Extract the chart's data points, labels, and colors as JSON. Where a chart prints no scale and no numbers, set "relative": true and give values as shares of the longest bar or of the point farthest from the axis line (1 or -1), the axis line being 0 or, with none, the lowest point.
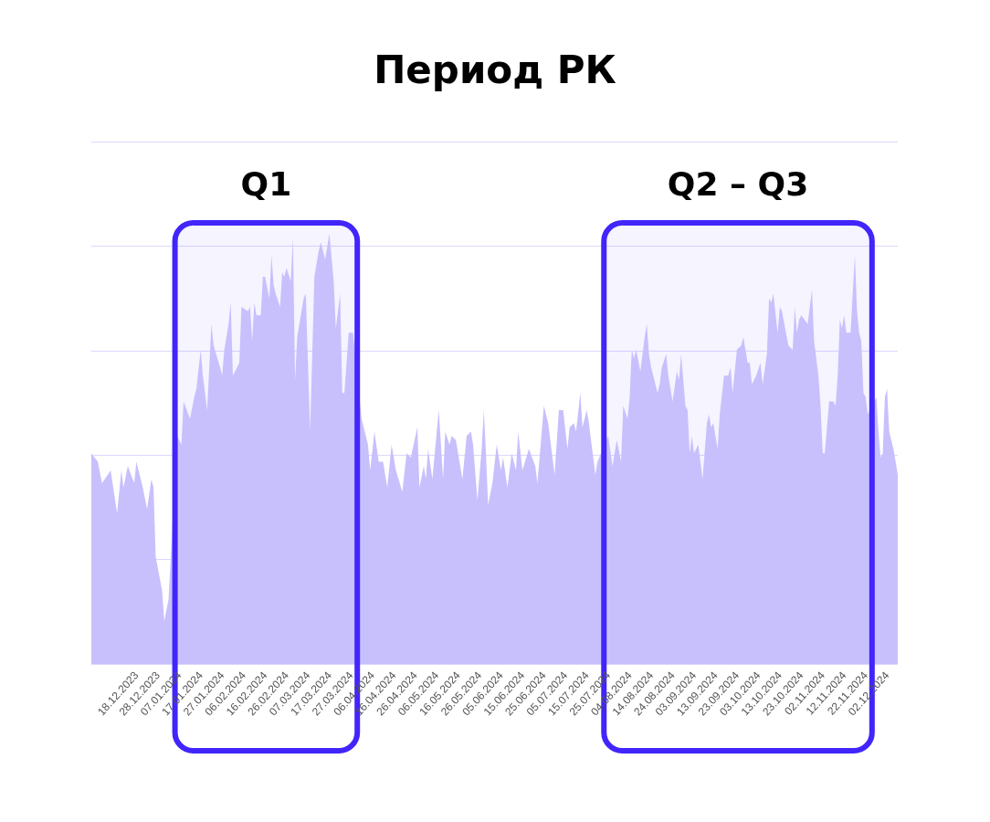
{
  "chart_data": {
    "type": "area",
    "title": "Период РК",
    "relative": true,
    "grid": "y",
    "marker": "none",
    "tick_labels": "x",
    "color": "#c8c0fc",
    "xlim": [
      "2023-11-27",
      "2024-12-07"
    ],
    "xticks": [
      {
        "value": "2023-12-18",
        "label": "18.12.2023"
      },
      {
        "value": "2023-12-28",
        "label": "28.12.2023"
      },
      {
        "value": "2024-01-07",
        "label": "07.01.2024"
      },
      {
        "value": "2024-01-17",
        "label": "17.01.2024"
      },
      {
        "value": "2024-01-27",
        "label": "27.01.2024"
      },
      {
        "value": "2024-02-06",
        "label": "06.02.2024"
      },
      {
        "value": "2024-02-16",
        "label": "16.02.2024"
      },
      {
        "value": "2024-02-26",
        "label": "26.02.2024"
      },
      {
        "value": "2024-03-07",
        "label": "07.03.2024"
      },
      {
        "value": "2024-03-17",
        "label": "17.03.2024"
      },
      {
        "value": "2024-03-27",
        "label": "27.03.2024"
      },
      {
        "value": "2024-04-06",
        "label": "06.04.2024"
      },
      {
        "value": "2024-04-16",
        "label": "16.04.2024"
      },
      {
        "value": "2024-04-26",
        "label": "26.04.2024"
      },
      {
        "value": "2024-05-06",
        "label": "06.05.2024"
      },
      {
        "value": "2024-05-16",
        "label": "16.05.2024"
      },
      {
        "value": "2024-05-26",
        "label": "26.05.2024"
      },
      {
        "value": "2024-06-05",
        "label": "05.06.2024"
      },
      {
        "value": "2024-06-15",
        "label": "15.06.2024"
      },
      {
        "value": "2024-06-25",
        "label": "25.06.2024"
      },
      {
        "value": "2024-07-05",
        "label": "05.07.2024"
      },
      {
        "value": "2024-07-15",
        "label": "15.07.2024"
      },
      {
        "value": "2024-07-25",
        "label": "25.07.2024"
      },
      {
        "value": "2024-08-04",
        "label": "04.08.2024"
      },
      {
        "value": "2024-08-14",
        "label": "14.08.2024"
      },
      {
        "value": "2024-08-24",
        "label": "24.08.2024"
      },
      {
        "value": "2024-09-03",
        "label": "03.09.2024"
      },
      {
        "value": "2024-09-13",
        "label": "13.09.2024"
      },
      {
        "value": "2024-09-23",
        "label": "23.09.2024"
      },
      {
        "value": "2024-10-03",
        "label": "03.10.2024"
      },
      {
        "value": "2024-10-13",
        "label": "13.10.2024"
      },
      {
        "value": "2024-10-23",
        "label": "23.10.2024"
      },
      {
        "value": "2024-11-02",
        "label": "02.11.2024"
      },
      {
        "value": "2024-11-12",
        "label": "12.11.2024"
      },
      {
        "value": "2024-11-22",
        "label": "22.11.2024"
      },
      {
        "value": "2024-12-02",
        "label": "02.12.2024"
      }
    ],
    "x": [
      "2023-11-27",
      "2023-11-30",
      "2023-12-02",
      "2023-12-06",
      "2023-12-09",
      "2023-12-11",
      "2023-12-12",
      "2023-12-14",
      "2023-12-17",
      "2023-12-18",
      "2023-12-21",
      "2023-12-23",
      "2023-12-25",
      "2023-12-26",
      "2023-12-27",
      "2023-12-30",
      "2023-12-31",
      "2024-01-02",
      "2024-01-06",
      "2024-01-08",
      "2024-01-09",
      "2024-01-12",
      "2024-01-14",
      "2024-01-15",
      "2024-01-17",
      "2024-01-18",
      "2024-01-20",
      "2024-01-22",
      "2024-01-23",
      "2024-01-26",
      "2024-01-27",
      "2024-01-28",
      "2024-01-30",
      "2024-01-31",
      "2024-02-01",
      "2024-02-04",
      "2024-02-05",
      "2024-02-08",
      "2024-02-09",
      "2024-02-10",
      "2024-02-11",
      "2024-02-12",
      "2024-02-14",
      "2024-02-15",
      "2024-02-16",
      "2024-02-18",
      "2024-02-19",
      "2024-02-20",
      "2024-02-21",
      "2024-02-23",
      "2024-02-24",
      "2024-02-25",
      "2024-02-26",
      "2024-02-28",
      "2024-02-29",
      "2024-03-01",
      "2024-03-02",
      "2024-03-05",
      "2024-03-06",
      "2024-03-08",
      "2024-03-10",
      "2024-03-12",
      "2024-03-13",
      "2024-03-15",
      "2024-03-17",
      "2024-03-19",
      "2024-03-20",
      "2024-03-22",
      "2024-03-23",
      "2024-03-24",
      "2024-03-26",
      "2024-03-28",
      "2024-04-01",
      "2024-04-04",
      "2024-04-05",
      "2024-04-07",
      "2024-04-09",
      "2024-04-11",
      "2024-04-13",
      "2024-04-15",
      "2024-04-17",
      "2024-04-20",
      "2024-04-22",
      "2024-04-24",
      "2024-04-27",
      "2024-04-28",
      "2024-04-30",
      "2024-05-01",
      "2024-05-02",
      "2024-05-04",
      "2024-05-07",
      "2024-05-09",
      "2024-05-10",
      "2024-05-12",
      "2024-05-13",
      "2024-05-15",
      "2024-05-18",
      "2024-05-20",
      "2024-05-22",
      "2024-05-23",
      "2024-05-25",
      "2024-05-27",
      "2024-05-28",
      "2024-05-29",
      "2024-05-30",
      "2024-06-01",
      "2024-06-03",
      "2024-06-05",
      "2024-06-06",
      "2024-06-08",
      "2024-06-10",
      "2024-06-12",
      "2024-06-13",
      "2024-06-15",
      "2024-06-18",
      "2024-06-21",
      "2024-06-22",
      "2024-06-25",
      "2024-06-27",
      "2024-06-30",
      "2024-07-02",
      "2024-07-04",
      "2024-07-06",
      "2024-07-07",
      "2024-07-09",
      "2024-07-10",
      "2024-07-12",
      "2024-07-13",
      "2024-07-15",
      "2024-07-16",
      "2024-07-19",
      "2024-07-20",
      "2024-07-25",
      "2024-07-27",
      "2024-07-29",
      "2024-07-31",
      "2024-08-01",
      "2024-08-03",
      "2024-08-04",
      "2024-08-05",
      "2024-08-06",
      "2024-08-07",
      "2024-08-09",
      "2024-08-11",
      "2024-08-12",
      "2024-08-13",
      "2024-08-14",
      "2024-08-17",
      "2024-08-18",
      "2024-08-19",
      "2024-08-21",
      "2024-08-22",
      "2024-08-24",
      "2024-08-26",
      "2024-08-27",
      "2024-08-28",
      "2024-08-30",
      "2024-08-31",
      "2024-09-01",
      "2024-09-02",
      "2024-09-03",
      "2024-09-05",
      "2024-09-07",
      "2024-09-09",
      "2024-09-10",
      "2024-09-11",
      "2024-09-12",
      "2024-09-14",
      "2024-09-15",
      "2024-09-17",
      "2024-09-19",
      "2024-09-20",
      "2024-09-21",
      "2024-09-23",
      "2024-09-25",
      "2024-09-26",
      "2024-09-28",
      "2024-09-29",
      "2024-09-30",
      "2024-10-02",
      "2024-10-04",
      "2024-10-05",
      "2024-10-07",
      "2024-10-08",
      "2024-10-09",
      "2024-10-10",
      "2024-10-12",
      "2024-10-13",
      "2024-10-14",
      "2024-10-17",
      "2024-10-19",
      "2024-10-20",
      "2024-10-21",
      "2024-10-22",
      "2024-10-23",
      "2024-10-26",
      "2024-10-28",
      "2024-10-29",
      "2024-10-31",
      "2024-11-01",
      "2024-11-02",
      "2024-11-03",
      "2024-11-05",
      "2024-11-07",
      "2024-11-08",
      "2024-11-09",
      "2024-11-10",
      "2024-11-11",
      "2024-11-12",
      "2024-11-13",
      "2024-11-15",
      "2024-11-16",
      "2024-11-17",
      "2024-11-18",
      "2024-11-19",
      "2024-11-20",
      "2024-11-21",
      "2024-11-22",
      "2024-11-23",
      "2024-11-27",
      "2024-11-28",
      "2024-11-29",
      "2024-11-30",
      "2024-12-01",
      "2024-12-02",
      "2024-12-03",
      "2024-12-05",
      "2024-12-06",
      "2024-12-07"
    ],
    "values": [
      0.49,
      0.47,
      0.42,
      0.45,
      0.35,
      0.45,
      0.41,
      0.46,
      0.42,
      0.47,
      0.41,
      0.36,
      0.43,
      0.41,
      0.25,
      0.17,
      0.1,
      0.15,
      0.53,
      0.51,
      0.61,
      0.57,
      0.62,
      0.64,
      0.73,
      0.67,
      0.59,
      0.79,
      0.74,
      0.69,
      0.67,
      0.73,
      0.79,
      0.84,
      0.67,
      0.7,
      0.83,
      0.82,
      0.83,
      0.75,
      0.84,
      0.81,
      0.81,
      0.9,
      0.9,
      0.85,
      0.95,
      0.88,
      0.86,
      0.83,
      0.91,
      0.9,
      0.92,
      0.89,
      0.99,
      0.66,
      0.76,
      0.85,
      0.86,
      0.54,
      0.9,
      0.96,
      0.98,
      0.94,
      1.0,
      0.89,
      0.78,
      0.86,
      0.63,
      0.63,
      0.77,
      0.77,
      0.57,
      0.51,
      0.45,
      0.54,
      0.47,
      0.47,
      0.41,
      0.51,
      0.45,
      0.4,
      0.49,
      0.48,
      0.55,
      0.41,
      0.46,
      0.43,
      0.5,
      0.43,
      0.59,
      0.43,
      0.54,
      0.51,
      0.53,
      0.52,
      0.43,
      0.53,
      0.54,
      0.51,
      0.38,
      0.5,
      0.59,
      0.49,
      0.37,
      0.42,
      0.51,
      0.45,
      0.48,
      0.41,
      0.49,
      0.45,
      0.54,
      0.45,
      0.5,
      0.46,
      0.42,
      0.6,
      0.56,
      0.44,
      0.59,
      0.59,
      0.5,
      0.55,
      0.56,
      0.54,
      0.63,
      0.55,
      0.59,
      0.56,
      0.44,
      0.47,
      0.53,
      0.46,
      0.52,
      0.47,
      0.6,
      0.57,
      0.62,
      0.73,
      0.71,
      0.73,
      0.68,
      0.76,
      0.79,
      0.72,
      0.69,
      0.63,
      0.65,
      0.69,
      0.72,
      0.67,
      0.61,
      0.68,
      0.66,
      0.72,
      0.6,
      0.59,
      0.49,
      0.53,
      0.49,
      0.51,
      0.43,
      0.56,
      0.58,
      0.55,
      0.56,
      0.5,
      0.58,
      0.67,
      0.67,
      0.69,
      0.63,
      0.73,
      0.74,
      0.76,
      0.7,
      0.7,
      0.65,
      0.67,
      0.7,
      0.65,
      0.72,
      0.85,
      0.84,
      0.86,
      0.77,
      0.83,
      0.82,
      0.74,
      0.73,
      0.83,
      0.77,
      0.8,
      0.81,
      0.79,
      0.87,
      0.75,
      0.67,
      0.6,
      0.49,
      0.49,
      0.61,
      0.61,
      0.6,
      0.67,
      0.8,
      0.78,
      0.81,
      0.77,
      0.77,
      0.86,
      0.95,
      0.82,
      0.77,
      0.75,
      0.63,
      0.62,
      0.58,
      0.62,
      0.54,
      0.48,
      0.49,
      0.62,
      0.64,
      0.54,
      0.5,
      0.47,
      0.44
    ],
    "bands": [
      {
        "axis": "x",
        "from": "2024-01-05",
        "to": "2024-03-30",
        "label": "Q1",
        "color": "#4125fb"
      },
      {
        "axis": "x",
        "from": "2024-07-23",
        "to": "2024-11-25",
        "label": "Q2 – Q3",
        "color": "#4125fb"
      }
    ]
  }
}
